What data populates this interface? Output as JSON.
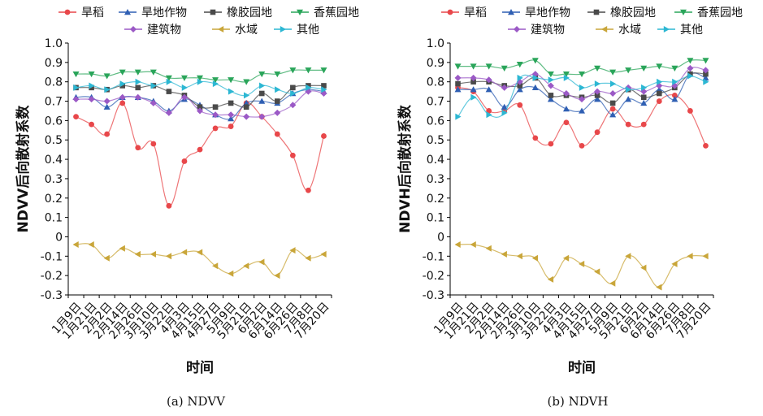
{
  "legend": {
    "items": [
      {
        "label": "旱稻",
        "color": "#e8474a",
        "marker": "circle"
      },
      {
        "label": "旱地作物",
        "color": "#2f5fb3",
        "marker": "triangle-up"
      },
      {
        "label": "橡胶园地",
        "color": "#4a4a4a",
        "marker": "square"
      },
      {
        "label": "香蕉园地",
        "color": "#2aa55a",
        "marker": "triangle-down"
      },
      {
        "label": "建筑物",
        "color": "#9b59c6",
        "marker": "diamond"
      },
      {
        "label": "水域",
        "color": "#c9a63a",
        "marker": "triangle-left"
      },
      {
        "label": "其他",
        "color": "#2cb7d3",
        "marker": "triangle-right"
      }
    ]
  },
  "chart_data": [
    {
      "type": "line",
      "caption": "(a) NDVV",
      "xlabel": "时间",
      "ylabel": "NDVV后向散射系数",
      "ylim": [
        -0.3,
        1.0
      ],
      "yticks": [
        "1.0",
        "0.9",
        "0.8",
        "0.7",
        "0.6",
        "0.5",
        "0.4",
        "0.3",
        "0.2",
        "0.1",
        "0",
        "-0.1",
        "-0.2",
        "-0.3"
      ],
      "categories": [
        "1月9日",
        "1月21日",
        "2月2日",
        "2月14日",
        "2月26日",
        "3月10日",
        "3月22日",
        "4月3日",
        "4月15日",
        "4月27日",
        "5月9日",
        "5月21日",
        "6月2日",
        "6月14日",
        "6月26日",
        "7月8日",
        "7月20日"
      ],
      "series": [
        {
          "name": "旱稻",
          "values": [
            0.62,
            0.58,
            0.53,
            0.69,
            0.46,
            0.48,
            0.16,
            0.39,
            0.45,
            0.56,
            0.57,
            0.69,
            0.62,
            0.53,
            0.42,
            0.24,
            0.52
          ]
        },
        {
          "name": "旱地作物",
          "values": [
            0.72,
            0.72,
            0.67,
            0.72,
            0.72,
            0.7,
            0.65,
            0.71,
            0.68,
            0.63,
            0.61,
            0.69,
            0.7,
            0.69,
            0.74,
            0.76,
            0.75
          ]
        },
        {
          "name": "橡胶园地",
          "values": [
            0.77,
            0.77,
            0.76,
            0.78,
            0.77,
            0.78,
            0.75,
            0.73,
            0.67,
            0.67,
            0.69,
            0.67,
            0.74,
            0.7,
            0.77,
            0.78,
            0.78
          ]
        },
        {
          "name": "香蕉园地",
          "values": [
            0.84,
            0.84,
            0.83,
            0.85,
            0.85,
            0.85,
            0.82,
            0.82,
            0.82,
            0.81,
            0.81,
            0.8,
            0.84,
            0.84,
            0.86,
            0.86,
            0.86
          ]
        },
        {
          "name": "建筑物",
          "values": [
            0.71,
            0.71,
            0.7,
            0.72,
            0.72,
            0.69,
            0.64,
            0.72,
            0.65,
            0.63,
            0.63,
            0.62,
            0.62,
            0.64,
            0.68,
            0.75,
            0.74
          ]
        },
        {
          "name": "水域",
          "values": [
            -0.04,
            -0.04,
            -0.11,
            -0.06,
            -0.09,
            -0.09,
            -0.1,
            -0.08,
            -0.08,
            -0.15,
            -0.19,
            -0.15,
            -0.13,
            -0.2,
            -0.07,
            -0.11,
            -0.09
          ]
        },
        {
          "name": "其他",
          "values": [
            0.77,
            0.78,
            0.76,
            0.79,
            0.8,
            0.78,
            0.8,
            0.77,
            0.8,
            0.79,
            0.75,
            0.73,
            0.78,
            0.76,
            0.74,
            0.77,
            0.76
          ]
        }
      ]
    },
    {
      "type": "line",
      "caption": "(b) NDVH",
      "xlabel": "时间",
      "ylabel": "NDVH后向散射系数",
      "ylim": [
        -0.3,
        1.0
      ],
      "yticks": [
        "1.0",
        "0.9",
        "0.8",
        "0.7",
        "0.6",
        "0.5",
        "0.4",
        "0.3",
        "0.2",
        "0.1",
        "0",
        "-0.1",
        "-0.2",
        "-0.3"
      ],
      "categories": [
        "1月9日",
        "1月21日",
        "2月2日",
        "2月14日",
        "2月26日",
        "3月10日",
        "3月22日",
        "4月3日",
        "4月15日",
        "4月27日",
        "5月9日",
        "5月21日",
        "6月2日",
        "6月14日",
        "6月26日",
        "7月8日",
        "7月20日"
      ],
      "series": [
        {
          "name": "旱稻",
          "values": [
            0.77,
            0.75,
            0.65,
            0.65,
            0.68,
            0.51,
            0.48,
            0.59,
            0.47,
            0.54,
            0.66,
            0.58,
            0.58,
            0.7,
            0.73,
            0.65,
            0.47
          ]
        },
        {
          "name": "旱地作物",
          "values": [
            0.76,
            0.76,
            0.76,
            0.67,
            0.76,
            0.77,
            0.71,
            0.66,
            0.65,
            0.71,
            0.63,
            0.71,
            0.69,
            0.76,
            0.71,
            0.84,
            0.82
          ]
        },
        {
          "name": "橡胶园地",
          "values": [
            0.79,
            0.8,
            0.8,
            0.78,
            0.78,
            0.82,
            0.73,
            0.73,
            0.72,
            0.73,
            0.69,
            0.76,
            0.72,
            0.74,
            0.77,
            0.84,
            0.84
          ]
        },
        {
          "name": "香蕉园地",
          "values": [
            0.88,
            0.88,
            0.88,
            0.87,
            0.89,
            0.91,
            0.84,
            0.84,
            0.84,
            0.87,
            0.85,
            0.86,
            0.87,
            0.88,
            0.87,
            0.91,
            0.91
          ]
        },
        {
          "name": "建筑物",
          "values": [
            0.82,
            0.82,
            0.81,
            0.77,
            0.8,
            0.84,
            0.78,
            0.74,
            0.71,
            0.75,
            0.74,
            0.77,
            0.75,
            0.78,
            0.78,
            0.87,
            0.86
          ]
        },
        {
          "name": "水域",
          "values": [
            -0.04,
            -0.04,
            -0.06,
            -0.09,
            -0.1,
            -0.11,
            -0.22,
            -0.11,
            -0.14,
            -0.18,
            -0.24,
            -0.1,
            -0.16,
            -0.26,
            -0.14,
            -0.1,
            -0.1
          ]
        },
        {
          "name": "其他",
          "values": [
            0.62,
            0.72,
            0.63,
            0.64,
            0.82,
            0.82,
            0.81,
            0.82,
            0.77,
            0.79,
            0.79,
            0.76,
            0.77,
            0.8,
            0.8,
            0.83,
            0.8
          ]
        }
      ]
    }
  ]
}
